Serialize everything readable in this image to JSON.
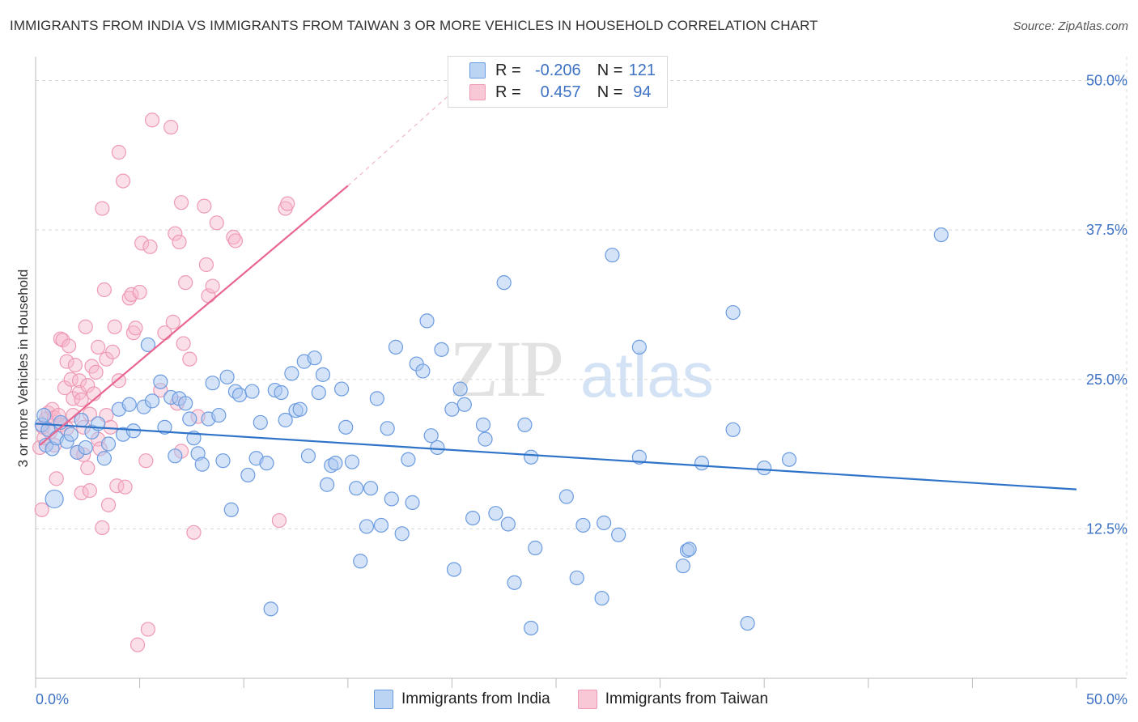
{
  "title": "IMMIGRANTS FROM INDIA VS IMMIGRANTS FROM TAIWAN 3 OR MORE VEHICLES IN HOUSEHOLD CORRELATION CHART",
  "source": "Source: ZipAtlas.com",
  "watermark": {
    "zip": "ZIP",
    "atlas": "atlas"
  },
  "legend": {
    "rows": [
      {
        "r_label": "R =",
        "r_value": "-0.206",
        "n_label": "N =",
        "n_value": "121"
      },
      {
        "r_label": "R =",
        "r_value": "0.457",
        "n_label": "N =",
        "n_value": "94"
      }
    ]
  },
  "bottom_legend": {
    "india": "Immigrants from India",
    "taiwan": "Immigrants from Taiwan"
  },
  "colors": {
    "india_fill": "#a9c8ef",
    "india_stroke": "#6b9be0",
    "india_line": "#2f73c9",
    "taiwan_fill": "#f6b8cb",
    "taiwan_stroke": "#ee9ab4",
    "taiwan_line": "#e8668f",
    "tick_blue": "#3d72c4",
    "grid": "#d8d8d8"
  },
  "chart_data": {
    "type": "scatter",
    "title": "IMMIGRANTS FROM INDIA VS IMMIGRANTS FROM TAIWAN 3 OR MORE VEHICLES IN HOUSEHOLD CORRELATION CHART",
    "xlabel": "",
    "ylabel": "3 or more Vehicles in Household",
    "xlim": [
      0,
      50
    ],
    "ylim": [
      0,
      52
    ],
    "x_tick_labels": [
      "0.0%",
      "50.0%"
    ],
    "y_ticks": [
      12.5,
      25.0,
      37.5,
      50.0
    ],
    "y_tick_labels": [
      "12.5%",
      "25.0%",
      "37.5%",
      "50.0%"
    ],
    "grid": true,
    "series": [
      {
        "name": "Immigrants from India",
        "R": -0.206,
        "N": 121,
        "trend": {
          "x": [
            0,
            50
          ],
          "y": [
            21.3,
            15.8
          ]
        },
        "points": [
          [
            0.3,
            21.2
          ],
          [
            0.4,
            22.0
          ],
          [
            0.5,
            19.5
          ],
          [
            0.6,
            20.8
          ],
          [
            0.8,
            19.2
          ],
          [
            0.9,
            15.0
          ],
          [
            1.0,
            20.1
          ],
          [
            1.2,
            21.4
          ],
          [
            1.5,
            19.8
          ],
          [
            1.7,
            20.4
          ],
          [
            2.0,
            18.9
          ],
          [
            2.2,
            21.6
          ],
          [
            2.4,
            19.3
          ],
          [
            2.7,
            20.6
          ],
          [
            3.0,
            21.3
          ],
          [
            3.3,
            18.4
          ],
          [
            3.5,
            19.6
          ],
          [
            4.0,
            22.5
          ],
          [
            4.2,
            20.4
          ],
          [
            4.5,
            22.9
          ],
          [
            4.7,
            20.7
          ],
          [
            5.2,
            22.7
          ],
          [
            5.4,
            27.9
          ],
          [
            5.6,
            23.2
          ],
          [
            6.0,
            24.8
          ],
          [
            6.2,
            21.0
          ],
          [
            6.5,
            23.5
          ],
          [
            6.7,
            18.6
          ],
          [
            6.9,
            23.4
          ],
          [
            7.2,
            23.0
          ],
          [
            7.4,
            21.7
          ],
          [
            7.6,
            20.1
          ],
          [
            7.8,
            18.8
          ],
          [
            8.0,
            17.9
          ],
          [
            8.3,
            21.7
          ],
          [
            8.5,
            24.7
          ],
          [
            8.8,
            22.0
          ],
          [
            9.0,
            18.2
          ],
          [
            9.2,
            25.2
          ],
          [
            9.4,
            14.1
          ],
          [
            9.6,
            24.0
          ],
          [
            9.8,
            23.7
          ],
          [
            10.2,
            17.0
          ],
          [
            10.4,
            24.0
          ],
          [
            10.6,
            18.4
          ],
          [
            10.8,
            21.4
          ],
          [
            11.1,
            18.0
          ],
          [
            11.3,
            5.8
          ],
          [
            11.5,
            24.1
          ],
          [
            11.8,
            23.9
          ],
          [
            12.0,
            21.6
          ],
          [
            12.3,
            25.5
          ],
          [
            12.5,
            22.4
          ],
          [
            12.7,
            22.5
          ],
          [
            12.9,
            26.5
          ],
          [
            13.1,
            18.6
          ],
          [
            13.4,
            26.8
          ],
          [
            13.6,
            23.9
          ],
          [
            13.8,
            25.4
          ],
          [
            14.0,
            16.2
          ],
          [
            14.2,
            17.8
          ],
          [
            14.4,
            18.0
          ],
          [
            14.7,
            24.2
          ],
          [
            14.9,
            21.0
          ],
          [
            15.2,
            18.1
          ],
          [
            15.4,
            15.9
          ],
          [
            15.6,
            9.8
          ],
          [
            15.9,
            12.7
          ],
          [
            16.1,
            15.9
          ],
          [
            16.4,
            23.4
          ],
          [
            16.6,
            12.8
          ],
          [
            16.9,
            20.9
          ],
          [
            17.1,
            15.0
          ],
          [
            17.3,
            27.7
          ],
          [
            17.6,
            12.1
          ],
          [
            17.9,
            18.3
          ],
          [
            18.1,
            14.7
          ],
          [
            18.3,
            26.3
          ],
          [
            18.6,
            25.7
          ],
          [
            18.8,
            29.9
          ],
          [
            19.0,
            20.3
          ],
          [
            19.3,
            19.3
          ],
          [
            19.5,
            27.5
          ],
          [
            20.0,
            22.5
          ],
          [
            20.1,
            9.1
          ],
          [
            20.4,
            24.2
          ],
          [
            20.6,
            22.9
          ],
          [
            21.0,
            13.4
          ],
          [
            21.5,
            21.2
          ],
          [
            21.6,
            20.0
          ],
          [
            22.1,
            13.8
          ],
          [
            22.5,
            33.1
          ],
          [
            22.7,
            12.9
          ],
          [
            23.0,
            8.0
          ],
          [
            23.5,
            21.2
          ],
          [
            23.8,
            4.2
          ],
          [
            23.8,
            18.5
          ],
          [
            24.0,
            10.9
          ],
          [
            25.5,
            15.2
          ],
          [
            26.0,
            8.4
          ],
          [
            26.3,
            12.8
          ],
          [
            27.2,
            6.7
          ],
          [
            27.3,
            13.0
          ],
          [
            27.7,
            35.4
          ],
          [
            28.0,
            12.0
          ],
          [
            29.0,
            27.7
          ],
          [
            29.0,
            18.5
          ],
          [
            31.1,
            9.4
          ],
          [
            31.3,
            10.7
          ],
          [
            31.4,
            10.8
          ],
          [
            32.0,
            18.0
          ],
          [
            33.5,
            20.8
          ],
          [
            33.5,
            30.6
          ],
          [
            34.2,
            4.6
          ],
          [
            35.0,
            17.6
          ],
          [
            36.2,
            18.3
          ],
          [
            43.5,
            37.1
          ]
        ]
      },
      {
        "name": "Immigrants from Taiwan",
        "R": 0.457,
        "N": 94,
        "trend": {
          "x": [
            0.2,
            15.0
          ],
          "y": [
            19.5,
            41.2
          ],
          "dashed_extension": {
            "x": [
              15.0,
              20.0
            ],
            "y": [
              41.2,
              49.0
            ]
          }
        },
        "points": [
          [
            0.2,
            19.3
          ],
          [
            0.3,
            14.1
          ],
          [
            0.35,
            21.0
          ],
          [
            0.4,
            20.1
          ],
          [
            0.5,
            21.7
          ],
          [
            0.6,
            22.2
          ],
          [
            0.7,
            20.6
          ],
          [
            0.8,
            22.5
          ],
          [
            0.9,
            21.8
          ],
          [
            0.9,
            19.5
          ],
          [
            1.0,
            16.7
          ],
          [
            1.1,
            22.0
          ],
          [
            1.2,
            21.2
          ],
          [
            1.2,
            28.4
          ],
          [
            1.3,
            28.3
          ],
          [
            1.4,
            24.3
          ],
          [
            1.5,
            26.5
          ],
          [
            1.5,
            20.9
          ],
          [
            1.6,
            27.8
          ],
          [
            1.7,
            25.0
          ],
          [
            1.8,
            23.4
          ],
          [
            1.8,
            22.0
          ],
          [
            1.9,
            26.2
          ],
          [
            2.0,
            18.9
          ],
          [
            2.1,
            24.9
          ],
          [
            2.1,
            23.9
          ],
          [
            2.2,
            23.3
          ],
          [
            2.2,
            15.5
          ],
          [
            2.3,
            18.7
          ],
          [
            2.3,
            21.0
          ],
          [
            2.4,
            29.4
          ],
          [
            2.5,
            24.5
          ],
          [
            2.5,
            17.6
          ],
          [
            2.6,
            15.7
          ],
          [
            2.6,
            22.1
          ],
          [
            2.7,
            26.1
          ],
          [
            2.8,
            23.8
          ],
          [
            2.9,
            25.6
          ],
          [
            3.0,
            27.7
          ],
          [
            3.0,
            20.0
          ],
          [
            3.1,
            19.2
          ],
          [
            3.2,
            39.3
          ],
          [
            3.2,
            12.6
          ],
          [
            3.3,
            32.5
          ],
          [
            3.4,
            26.7
          ],
          [
            3.4,
            22.0
          ],
          [
            3.5,
            14.5
          ],
          [
            3.6,
            21.0
          ],
          [
            3.7,
            27.3
          ],
          [
            3.8,
            29.4
          ],
          [
            3.9,
            16.1
          ],
          [
            4.0,
            24.9
          ],
          [
            4.0,
            44.0
          ],
          [
            4.2,
            41.6
          ],
          [
            4.3,
            16.0
          ],
          [
            4.5,
            31.8
          ],
          [
            4.6,
            32.1
          ],
          [
            4.7,
            28.9
          ],
          [
            4.8,
            29.3
          ],
          [
            4.9,
            2.8
          ],
          [
            5.0,
            32.3
          ],
          [
            5.1,
            36.4
          ],
          [
            5.3,
            18.2
          ],
          [
            5.4,
            4.1
          ],
          [
            5.5,
            36.1
          ],
          [
            5.6,
            46.7
          ],
          [
            6.0,
            24.1
          ],
          [
            6.2,
            28.9
          ],
          [
            6.5,
            46.1
          ],
          [
            6.6,
            29.8
          ],
          [
            6.7,
            37.2
          ],
          [
            6.8,
            23.0
          ],
          [
            6.9,
            36.5
          ],
          [
            7.0,
            39.8
          ],
          [
            7.0,
            19.0
          ],
          [
            7.1,
            28.0
          ],
          [
            7.2,
            33.1
          ],
          [
            7.4,
            26.7
          ],
          [
            7.6,
            12.2
          ],
          [
            7.8,
            21.9
          ],
          [
            8.1,
            39.5
          ],
          [
            8.2,
            34.6
          ],
          [
            8.3,
            32.0
          ],
          [
            8.5,
            32.8
          ],
          [
            8.7,
            38.1
          ],
          [
            9.5,
            36.9
          ],
          [
            9.6,
            36.6
          ],
          [
            11.7,
            13.2
          ],
          [
            12.0,
            39.3
          ],
          [
            12.1,
            39.7
          ]
        ]
      }
    ]
  }
}
